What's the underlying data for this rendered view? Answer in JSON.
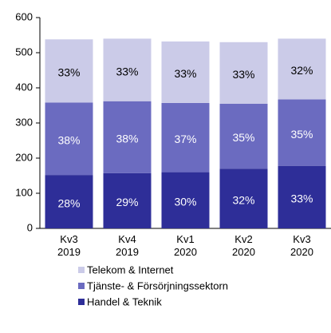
{
  "chart_data": {
    "type": "stacked_bar",
    "categories": [
      "Kv3\n2019",
      "Kv4\n2019",
      "Kv1\n2020",
      "Kv2\n2020",
      "Kv3\n2020"
    ],
    "series": [
      {
        "name": "Handel & Teknik",
        "color": "#2e2e98",
        "label_color": "#ffffff",
        "values": [
          152,
          157,
          160,
          170,
          178
        ],
        "value_labels": [
          "28%",
          "29%",
          "30%",
          "32%",
          "33%"
        ]
      },
      {
        "name": "Tjänste- & Försörjningssektorn",
        "color": "#6b6bc0",
        "label_color": "#ffffff",
        "values": [
          206,
          205,
          197,
          185,
          189
        ],
        "value_labels": [
          "38%",
          "38%",
          "37%",
          "35%",
          "35%"
        ]
      },
      {
        "name": "Telekom & Internet",
        "color": "#cbcbe8",
        "label_color": "#000000",
        "values": [
          180,
          178,
          175,
          175,
          173
        ],
        "value_labels": [
          "33%",
          "33%",
          "33%",
          "33%",
          "32%"
        ]
      }
    ],
    "ylim": [
      0,
      600
    ],
    "yticks": [
      0,
      100,
      200,
      300,
      400,
      500,
      600
    ]
  }
}
